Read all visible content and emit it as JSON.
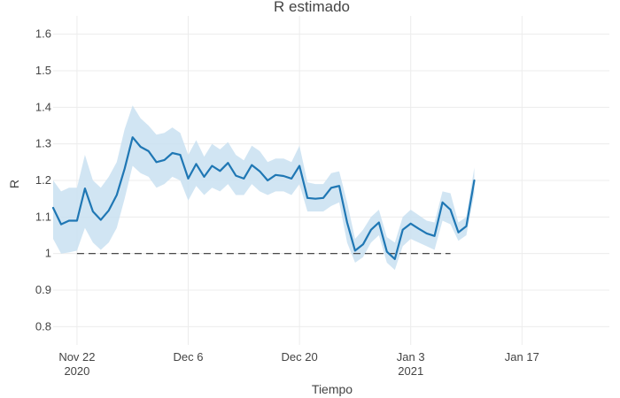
{
  "chart_data": {
    "type": "line",
    "title": "R estimado",
    "xlabel": "Tiempo",
    "ylabel": "R",
    "ylim": [
      0.75,
      1.65
    ],
    "xlim": [
      "2020-11-19",
      "2021-01-28"
    ],
    "yticks": [
      0.8,
      0.9,
      1,
      1.1,
      1.2,
      1.3,
      1.4,
      1.5,
      1.6
    ],
    "ytick_labels": [
      "0.8",
      "0.9",
      "1",
      "1.1",
      "1.2",
      "1.3",
      "1.4",
      "1.5",
      "1.6"
    ],
    "xticks": [
      {
        "date": "2020-11-22",
        "label": "Nov 22",
        "sublabel": "2020"
      },
      {
        "date": "2020-12-06",
        "label": "Dec 6",
        "sublabel": ""
      },
      {
        "date": "2020-12-20",
        "label": "Dec 20",
        "sublabel": ""
      },
      {
        "date": "2021-01-03",
        "label": "Jan 3",
        "sublabel": "2021"
      },
      {
        "date": "2021-01-17",
        "label": "Jan 17",
        "sublabel": ""
      }
    ],
    "grid": true,
    "legend": "none",
    "reference_line": {
      "y": 1,
      "from": "2020-11-22",
      "to": "2021-01-08",
      "style": "dashed"
    },
    "series": [
      {
        "type": "line-with-band",
        "color": "#1f77b4",
        "band_color": "#c9e0f1",
        "x": [
          "2020-11-19",
          "2020-11-20",
          "2020-11-21",
          "2020-11-22",
          "2020-11-23",
          "2020-11-24",
          "2020-11-25",
          "2020-11-26",
          "2020-11-27",
          "2020-11-28",
          "2020-11-29",
          "2020-11-30",
          "2020-12-01",
          "2020-12-02",
          "2020-12-03",
          "2020-12-04",
          "2020-12-05",
          "2020-12-06",
          "2020-12-07",
          "2020-12-08",
          "2020-12-09",
          "2020-12-10",
          "2020-12-11",
          "2020-12-12",
          "2020-12-13",
          "2020-12-14",
          "2020-12-15",
          "2020-12-16",
          "2020-12-17",
          "2020-12-18",
          "2020-12-19",
          "2020-12-20",
          "2020-12-21",
          "2020-12-22",
          "2020-12-23",
          "2020-12-24",
          "2020-12-25",
          "2020-12-26",
          "2020-12-27",
          "2020-12-28",
          "2020-12-29",
          "2020-12-30",
          "2020-12-31",
          "2021-01-01",
          "2021-01-02",
          "2021-01-03",
          "2021-01-04",
          "2021-01-05",
          "2021-01-06",
          "2021-01-07",
          "2021-01-08",
          "2021-01-09",
          "2021-01-10",
          "2021-01-11"
        ],
        "y": [
          1.125,
          1.08,
          1.09,
          1.09,
          1.178,
          1.115,
          1.092,
          1.118,
          1.16,
          1.232,
          1.318,
          1.292,
          1.28,
          1.25,
          1.256,
          1.275,
          1.27,
          1.205,
          1.245,
          1.21,
          1.24,
          1.226,
          1.248,
          1.213,
          1.205,
          1.242,
          1.225,
          1.2,
          1.215,
          1.212,
          1.205,
          1.24,
          1.152,
          1.15,
          1.152,
          1.18,
          1.185,
          1.085,
          1.008,
          1.025,
          1.065,
          1.085,
          1.005,
          0.985,
          1.065,
          1.082,
          1.068,
          1.055,
          1.048,
          1.14,
          1.12,
          1.058,
          1.075,
          1.2
        ],
        "lower": [
          1.04,
          1.0,
          1.003,
          1.008,
          1.07,
          1.03,
          1.01,
          1.03,
          1.07,
          1.15,
          1.24,
          1.22,
          1.21,
          1.18,
          1.19,
          1.21,
          1.2,
          1.145,
          1.185,
          1.16,
          1.18,
          1.17,
          1.19,
          1.16,
          1.16,
          1.19,
          1.17,
          1.16,
          1.17,
          1.17,
          1.16,
          1.19,
          1.115,
          1.115,
          1.115,
          1.13,
          1.14,
          1.03,
          0.975,
          0.99,
          1.03,
          1.05,
          0.975,
          0.955,
          1.02,
          1.04,
          1.03,
          1.02,
          1.01,
          1.09,
          1.08,
          1.035,
          1.05,
          1.165
        ],
        "upper": [
          1.2,
          1.17,
          1.18,
          1.18,
          1.27,
          1.2,
          1.18,
          1.21,
          1.25,
          1.34,
          1.405,
          1.37,
          1.35,
          1.325,
          1.33,
          1.345,
          1.33,
          1.27,
          1.31,
          1.265,
          1.3,
          1.285,
          1.305,
          1.27,
          1.255,
          1.295,
          1.28,
          1.25,
          1.26,
          1.26,
          1.25,
          1.295,
          1.195,
          1.19,
          1.19,
          1.22,
          1.225,
          1.14,
          1.04,
          1.065,
          1.1,
          1.12,
          1.045,
          1.03,
          1.1,
          1.12,
          1.105,
          1.09,
          1.085,
          1.17,
          1.165,
          1.085,
          1.1,
          1.235
        ]
      }
    ]
  }
}
